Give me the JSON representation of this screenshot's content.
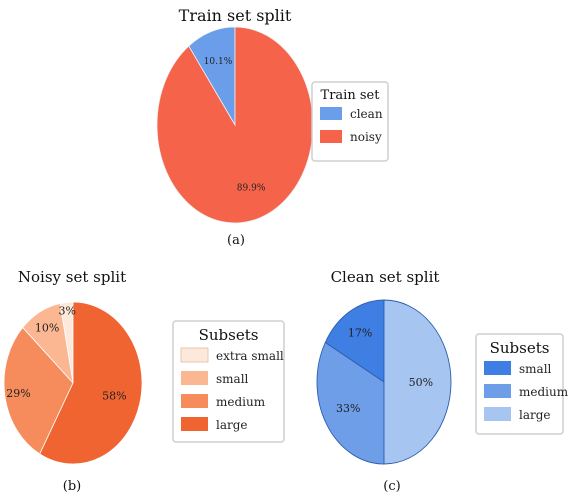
{
  "chart_data": [
    {
      "type": "pie",
      "title": "Train set split",
      "caption": "(a)",
      "legend_title": "Train set",
      "legend_position": "right",
      "slices": [
        {
          "label": "clean",
          "value": 10.1,
          "display": "10.1%",
          "color": "#6b9eea"
        },
        {
          "label": "noisy",
          "value": 89.9,
          "display": "89.9%",
          "color": "#f5634a"
        }
      ]
    },
    {
      "type": "pie",
      "title": "Noisy set split",
      "caption": "(b)",
      "legend_title": "Subsets",
      "legend_position": "right",
      "slices": [
        {
          "label": "extra small",
          "value": 3,
          "display": "3%",
          "color": "#fde9dc"
        },
        {
          "label": "small",
          "value": 10,
          "display": "10%",
          "color": "#fbb791"
        },
        {
          "label": "medium",
          "value": 29,
          "display": "29%",
          "color": "#f68c5c"
        },
        {
          "label": "large",
          "value": 58,
          "display": "58%",
          "color": "#f06432"
        }
      ]
    },
    {
      "type": "pie",
      "title": "Clean set split",
      "caption": "(c)",
      "legend_title": "Subsets",
      "legend_position": "right",
      "slices": [
        {
          "label": "small",
          "value": 17,
          "display": "17%",
          "color": "#3f7ee2"
        },
        {
          "label": "medium",
          "value": 33,
          "display": "33%",
          "color": "#6f9ee8"
        },
        {
          "label": "large",
          "value": 50,
          "display": "50%",
          "color": "#a6c5f1"
        }
      ]
    }
  ]
}
